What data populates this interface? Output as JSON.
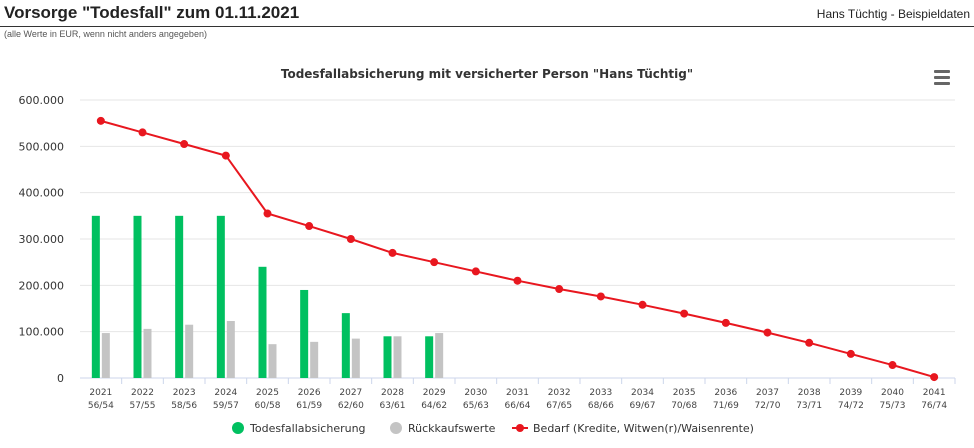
{
  "header": {
    "title": "Vorsorge \"Todesfall\" zum 01.11.2021",
    "user": "Hans Tüchtig - Beispieldaten",
    "note": "(alle Werte in EUR, wenn nicht anders angegeben)"
  },
  "menu_icon": "hamburger-menu-icon",
  "chart_data": {
    "type": "bar",
    "title": "Todesfallabsicherung mit versicherter Person \"Hans Tüchtig\"",
    "categories": [
      "2021",
      "2022",
      "2023",
      "2024",
      "2025",
      "2026",
      "2027",
      "2028",
      "2029",
      "2030",
      "2031",
      "2032",
      "2033",
      "2034",
      "2035",
      "2036",
      "2037",
      "2038",
      "2039",
      "2040",
      "2041"
    ],
    "category_sublabels": [
      "56/54",
      "57/55",
      "58/56",
      "59/57",
      "60/58",
      "61/59",
      "62/60",
      "63/61",
      "64/62",
      "65/63",
      "66/64",
      "67/65",
      "68/66",
      "69/67",
      "70/68",
      "71/69",
      "72/70",
      "73/71",
      "74/72",
      "75/73",
      "76/74"
    ],
    "ylim": [
      0,
      600000
    ],
    "yticks": [
      {
        "value": 0,
        "label": "0"
      },
      {
        "value": 100000,
        "label": "100.000"
      },
      {
        "value": 200000,
        "label": "200.000"
      },
      {
        "value": 300000,
        "label": "300.000"
      },
      {
        "value": 400000,
        "label": "400.000"
      },
      {
        "value": 500000,
        "label": "500.000"
      },
      {
        "value": 600000,
        "label": "600.000"
      }
    ],
    "grid": true,
    "legend_position": "bottom",
    "series": [
      {
        "name": "Todesfallabsicherung",
        "type": "bar",
        "color": "#00c060",
        "values": [
          350000,
          350000,
          350000,
          350000,
          240000,
          190000,
          140000,
          90000,
          90000,
          null,
          null,
          null,
          null,
          null,
          null,
          null,
          null,
          null,
          null,
          null,
          null
        ]
      },
      {
        "name": "Rückkaufswerte",
        "type": "bar",
        "color": "#c4c4c4",
        "values": [
          97000,
          106000,
          115000,
          123000,
          73000,
          78000,
          85000,
          90000,
          97000,
          null,
          null,
          null,
          null,
          null,
          null,
          null,
          null,
          null,
          null,
          null,
          null
        ]
      },
      {
        "name": "Bedarf (Kredite, Witwen(r)/Waisenrente)",
        "type": "line",
        "color": "#e8171f",
        "values": [
          555000,
          530000,
          505000,
          480000,
          355000,
          328000,
          300000,
          270000,
          250000,
          230000,
          210000,
          192000,
          176000,
          158000,
          139000,
          119000,
          98000,
          76000,
          52000,
          28000,
          2000
        ]
      }
    ]
  }
}
